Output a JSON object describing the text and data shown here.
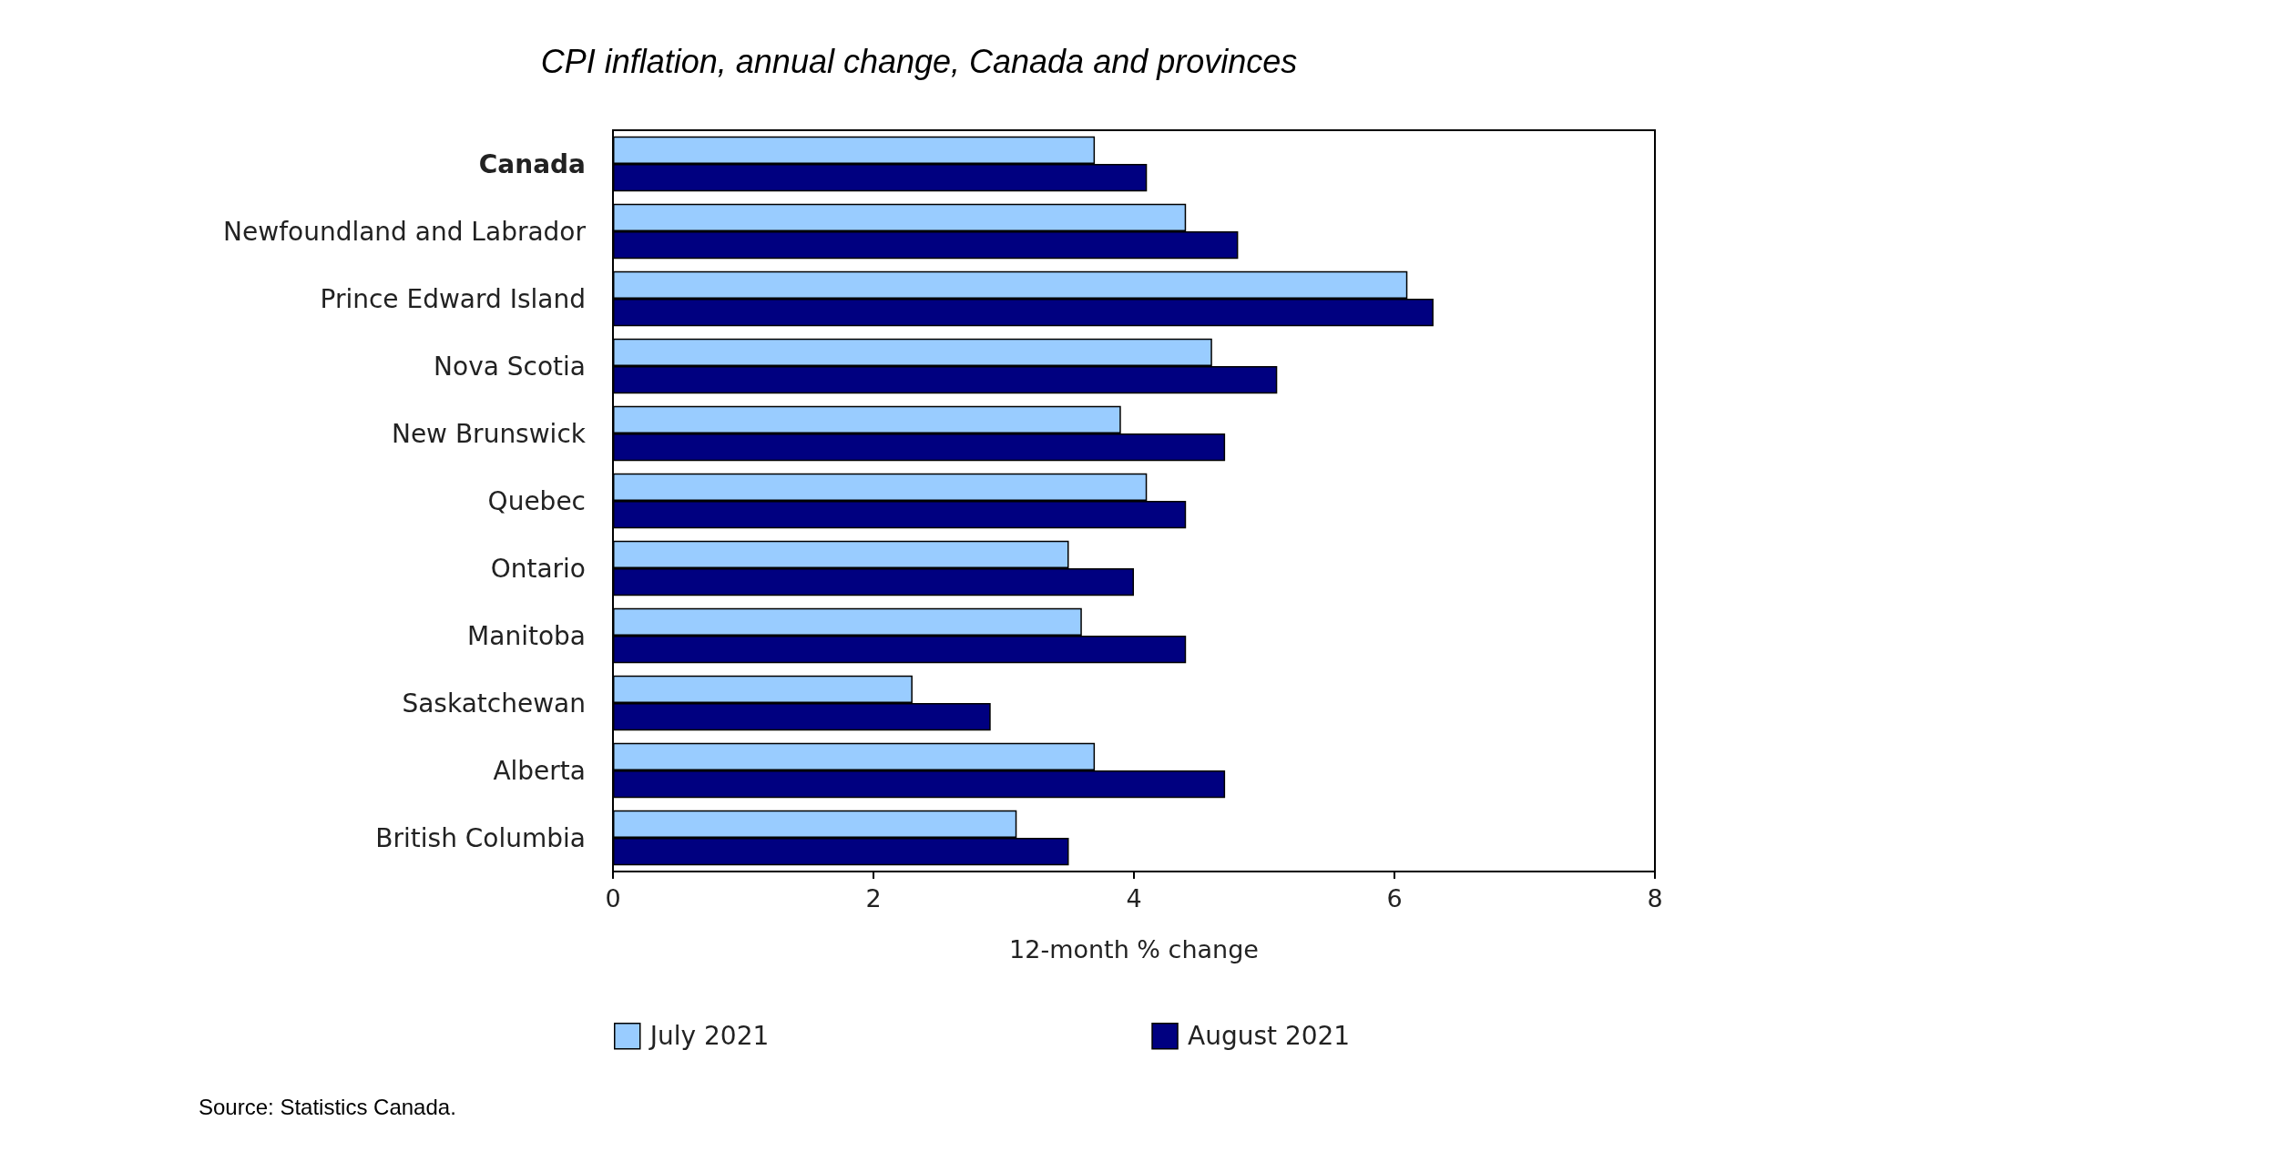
{
  "chart_data": {
    "type": "bar",
    "orientation": "horizontal",
    "title": "CPI inflation, annual change, Canada and provinces",
    "categories": [
      "Canada",
      "Newfoundland and Labrador",
      "Prince Edward Island",
      "Nova Scotia",
      "New Brunswick",
      "Quebec",
      "Ontario",
      "Manitoba",
      "Saskatchewan",
      "Alberta",
      "British Columbia"
    ],
    "series": [
      {
        "name": "July 2021",
        "color": "#99ccff",
        "values": [
          3.7,
          4.4,
          6.1,
          4.6,
          3.9,
          4.1,
          3.5,
          3.6,
          2.3,
          3.7,
          3.1
        ]
      },
      {
        "name": "August 2021",
        "color": "#000080",
        "values": [
          4.1,
          4.8,
          6.3,
          5.1,
          4.7,
          4.4,
          4.0,
          4.4,
          2.9,
          4.7,
          3.5
        ]
      }
    ],
    "xlabel": "12-month % change",
    "xlim": [
      0,
      8
    ],
    "xticks": [
      0,
      2,
      4,
      6,
      8
    ],
    "grid": false,
    "legend": "bottom left",
    "annotations": [
      "Source: Statistics Canada."
    ]
  }
}
